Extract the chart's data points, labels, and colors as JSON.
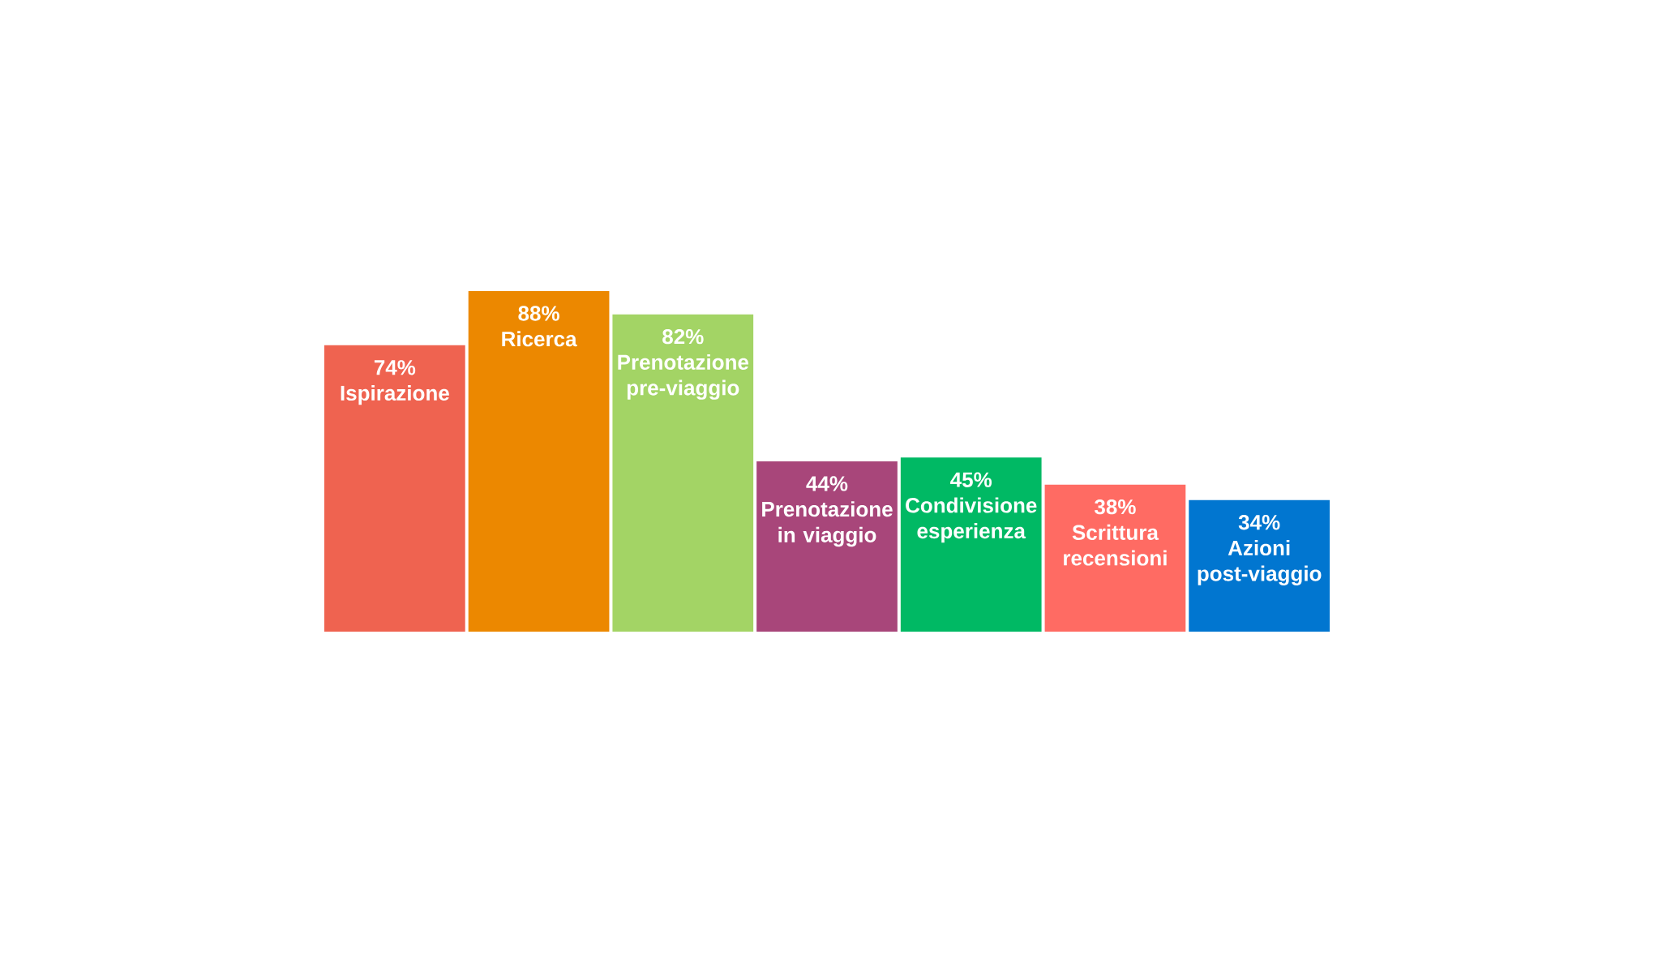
{
  "chart_data": {
    "type": "bar",
    "categories": [
      "Ispirazione",
      "Ricerca",
      "Prenotazione pre-viaggio",
      "Prenotazione in viaggio",
      "Condivisione esperienza",
      "Scrittura recensioni",
      "Azioni post-viaggio"
    ],
    "values": [
      74,
      88,
      82,
      44,
      45,
      38,
      34
    ],
    "value_labels": [
      "74%",
      "88%",
      "82%",
      "44%",
      "45%",
      "38%",
      "34%"
    ],
    "colors": [
      "#ef6350",
      "#ec8800",
      "#a3d465",
      "#a8467a",
      "#00b964",
      "#ff6b63",
      "#0176d0"
    ]
  }
}
